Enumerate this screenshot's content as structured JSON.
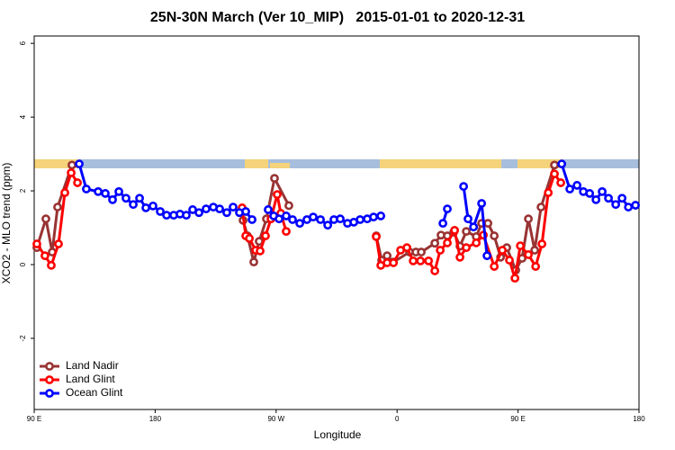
{
  "chart_data": {
    "type": "line",
    "title": "25N-30N March (Ver 10_MIP)   2015-01-01 to 2020-12-31",
    "x_label": "Longitude",
    "y_label": "XCO2 - MLO trend (ppm)",
    "xlim": [
      90,
      540
    ],
    "ylim": [
      -3.93,
      6.2
    ],
    "xticks": [
      {
        "value": 90,
        "label": "90 E"
      },
      180,
      {
        "value": 270,
        "label": "90 W"
      },
      {
        "value": 360,
        "label": "0"
      },
      {
        "value": 450,
        "label": "90 E"
      },
      {
        "value": 540,
        "label": "180"
      }
    ],
    "yticks": [
      -2,
      0,
      2,
      4,
      6
    ],
    "legend": "bottom-left",
    "series": [
      {
        "name": "Land Nadir",
        "color": "#993333",
        "x": [
          92.0,
          98.7,
          103.4,
          107.4,
          118.1,
          null,
          245.4,
          248.7,
          253.4,
          257.4,
          262.8,
          268.8,
          279.5,
          null,
          344.5,
          348.5,
          352.6,
          357.3,
          369.3,
          374.0,
          378.0,
          388.1,
          392.7,
          397.4,
          402.1,
          406.8,
          411.5,
          418.9,
          422.9,
          427.6,
          432.3,
          437.0,
          441.6,
          448.3,
          453.0,
          457.7,
          462.4,
          467.1,
          477.1
        ],
        "values": [
          0.46,
          1.24,
          0.34,
          1.56,
          2.7,
          null,
          1.2,
          0.78,
          0.07,
          0.63,
          1.24,
          2.34,
          1.6,
          null,
          0.78,
          0.12,
          0.24,
          0.07,
          0.34,
          0.34,
          0.34,
          0.58,
          0.8,
          0.78,
          0.88,
          0.5,
          0.9,
          0.76,
          1.12,
          1.12,
          0.78,
          0.2,
          0.46,
          -0.15,
          0.17,
          1.24,
          0.39,
          1.56,
          2.7
        ]
      },
      {
        "name": "Land Glint",
        "color": "#ff0000",
        "x": [
          92.0,
          98.0,
          102.7,
          108.1,
          112.8,
          117.5,
          122.2,
          null,
          244.7,
          247.4,
          250.1,
          254.8,
          258.1,
          262.1,
          266.2,
          270.8,
          273.5,
          277.5,
          null,
          344.5,
          347.9,
          352.6,
          357.3,
          362.6,
          367.3,
          372.0,
          377.4,
          383.4,
          388.1,
          392.1,
          397.4,
          402.8,
          406.8,
          411.5,
          418.9,
          424.2,
          432.3,
          438.3,
          443.6,
          447.7,
          451.7,
          457.7,
          463.1,
          467.8,
          472.5,
          477.1,
          481.8
        ],
        "values": [
          0.56,
          0.24,
          -0.02,
          0.56,
          1.95,
          2.49,
          2.22,
          null,
          1.54,
          0.78,
          0.71,
          0.39,
          0.37,
          0.78,
          1.24,
          1.9,
          1.39,
          0.9,
          null,
          0.76,
          -0.02,
          0.05,
          0.05,
          0.39,
          0.46,
          0.1,
          0.1,
          0.1,
          -0.17,
          0.39,
          0.59,
          0.93,
          0.2,
          0.46,
          0.59,
          0.8,
          -0.05,
          0.39,
          0.12,
          -0.37,
          0.51,
          0.27,
          -0.05,
          0.56,
          1.95,
          2.46,
          2.22
        ]
      },
      {
        "name": "Ocean Glint",
        "color": "#0000ff",
        "x": [
          123.5,
          128.8,
          137.6,
          142.9,
          148.3,
          153.0,
          158.3,
          163.7,
          168.4,
          173.1,
          178.4,
          183.8,
          188.5,
          193.8,
          198.5,
          203.2,
          207.9,
          212.6,
          217.9,
          223.3,
          228.0,
          233.3,
          238.0,
          242.7,
          247.4,
          252.1,
          null,
          264.1,
          268.2,
          272.2,
          277.5,
          282.2,
          287.6,
          292.9,
          297.6,
          303.0,
          308.4,
          313.0,
          317.7,
          323.1,
          327.8,
          332.5,
          337.8,
          342.5,
          347.9,
          null,
          394.1,
          397.4,
          null,
          409.5,
          412.8,
          416.9,
          422.9,
          426.9,
          null,
          482.5,
          488.5,
          493.9,
          498.6,
          503.3,
          508.0,
          512.6,
          517.3,
          522.7,
          527.4,
          532.1,
          537.4
        ],
        "values": [
          2.73,
          2.05,
          1.98,
          1.93,
          1.76,
          1.98,
          1.8,
          1.63,
          1.8,
          1.54,
          1.59,
          1.44,
          1.34,
          1.34,
          1.37,
          1.34,
          1.49,
          1.41,
          1.51,
          1.56,
          1.51,
          1.41,
          1.56,
          1.41,
          1.44,
          1.22,
          null,
          1.49,
          1.32,
          1.24,
          1.32,
          1.22,
          1.12,
          1.22,
          1.29,
          1.22,
          1.07,
          1.22,
          1.24,
          1.12,
          1.15,
          1.22,
          1.24,
          1.29,
          1.32,
          null,
          1.12,
          1.51,
          null,
          2.12,
          1.24,
          1.02,
          1.66,
          0.24,
          null,
          2.73,
          2.05,
          2.15,
          1.98,
          1.93,
          1.76,
          1.98,
          1.8,
          1.63,
          1.8,
          1.56,
          1.61
        ]
      }
    ]
  }
}
